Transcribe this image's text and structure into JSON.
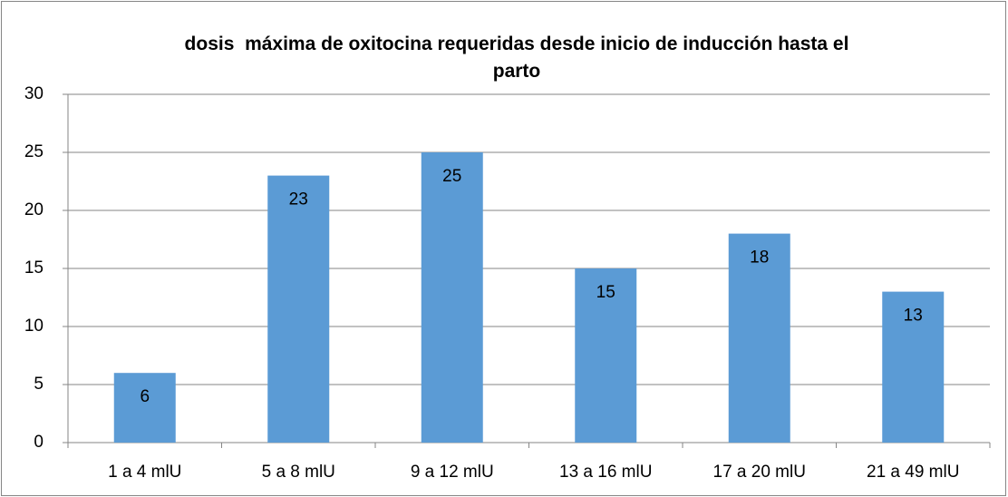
{
  "chart_data": {
    "type": "bar",
    "title": "dosis  máxima de oxitocina requeridas desde inicio de inducción hasta el parto",
    "categories": [
      "1 a 4 mlU",
      "5 a 8 mlU",
      "9 a 12 mlU",
      "13 a 16 mlU",
      "17 a 20 mlU",
      "21 a 49 mlU"
    ],
    "values": [
      6,
      23,
      25,
      15,
      18,
      13
    ],
    "color": "#5b9bd5",
    "ylim": [
      0,
      30
    ],
    "yticks": [
      0,
      5,
      10,
      15,
      20,
      25,
      30
    ],
    "grid": true
  }
}
